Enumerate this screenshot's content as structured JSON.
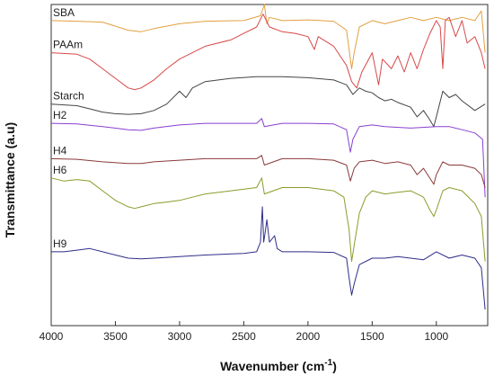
{
  "chart_data": {
    "type": "line",
    "title": "",
    "xlabel": "Wavenumber (cm",
    "xlabel_sup": "-1",
    "xlabel_close": ")",
    "ylabel": "Transmittance (a.u)",
    "xlim": [
      4000,
      600
    ],
    "x_reversed": true,
    "ylim": [
      0,
      100
    ],
    "y_ticks_shown": false,
    "grid": false,
    "legend": "inline labels at left",
    "x_ticks": [
      4000,
      3500,
      3000,
      2500,
      2000,
      1500,
      1000
    ],
    "x_tick_labels": [
      "4000",
      "3500",
      "3000",
      "2500",
      "2000",
      "1500",
      "1000"
    ],
    "series": [
      {
        "name": "SBA",
        "color": "#E2A040",
        "points": [
          [
            4000,
            95
          ],
          [
            3800,
            94.8
          ],
          [
            3600,
            94.5
          ],
          [
            3400,
            92
          ],
          [
            3300,
            91.5
          ],
          [
            3200,
            92.5
          ],
          [
            3000,
            94
          ],
          [
            2800,
            94.8
          ],
          [
            2500,
            95
          ],
          [
            2370,
            96.5
          ],
          [
            2340,
            100
          ],
          [
            2320,
            94
          ],
          [
            2300,
            96
          ],
          [
            2200,
            95
          ],
          [
            2000,
            95.2
          ],
          [
            1800,
            94.8
          ],
          [
            1700,
            92
          ],
          [
            1660,
            80
          ],
          [
            1640,
            85
          ],
          [
            1600,
            93
          ],
          [
            1500,
            95
          ],
          [
            1400,
            94
          ],
          [
            1300,
            95
          ],
          [
            1200,
            96
          ],
          [
            1100,
            95
          ],
          [
            1000,
            96
          ],
          [
            900,
            95
          ],
          [
            800,
            96
          ],
          [
            700,
            95
          ],
          [
            650,
            98
          ],
          [
            620,
            85
          ]
        ]
      },
      {
        "name": "PAAm",
        "color": "#D84848",
        "points": [
          [
            4000,
            85
          ],
          [
            3800,
            84.5
          ],
          [
            3700,
            83
          ],
          [
            3600,
            80
          ],
          [
            3500,
            77
          ],
          [
            3400,
            74
          ],
          [
            3350,
            73.5
          ],
          [
            3300,
            74
          ],
          [
            3200,
            76.5
          ],
          [
            3100,
            80
          ],
          [
            3000,
            83
          ],
          [
            2900,
            85
          ],
          [
            2800,
            87
          ],
          [
            2600,
            89
          ],
          [
            2500,
            91
          ],
          [
            2400,
            93
          ],
          [
            2350,
            97
          ],
          [
            2300,
            93
          ],
          [
            2200,
            91.5
          ],
          [
            2100,
            91
          ],
          [
            2000,
            90
          ],
          [
            1950,
            86
          ],
          [
            1920,
            90
          ],
          [
            1800,
            87
          ],
          [
            1700,
            81
          ],
          [
            1660,
            76
          ],
          [
            1620,
            74
          ],
          [
            1580,
            79
          ],
          [
            1500,
            85
          ],
          [
            1450,
            75
          ],
          [
            1420,
            83
          ],
          [
            1350,
            80
          ],
          [
            1300,
            84
          ],
          [
            1250,
            79
          ],
          [
            1200,
            85
          ],
          [
            1150,
            80
          ],
          [
            1100,
            86
          ],
          [
            1050,
            91
          ],
          [
            1000,
            95
          ],
          [
            970,
            93
          ],
          [
            950,
            80
          ],
          [
            930,
            95
          ],
          [
            900,
            96
          ],
          [
            850,
            90
          ],
          [
            800,
            95
          ],
          [
            760,
            88
          ],
          [
            700,
            90
          ],
          [
            650,
            85
          ],
          [
            620,
            80
          ]
        ]
      },
      {
        "name": "Starch",
        "color": "#444444",
        "points": [
          [
            4000,
            69
          ],
          [
            3800,
            68.5
          ],
          [
            3700,
            67.5
          ],
          [
            3600,
            66.5
          ],
          [
            3500,
            66
          ],
          [
            3400,
            65.8
          ],
          [
            3300,
            66
          ],
          [
            3200,
            67
          ],
          [
            3100,
            69
          ],
          [
            3000,
            73
          ],
          [
            2950,
            71
          ],
          [
            2900,
            74
          ],
          [
            2800,
            76
          ],
          [
            2600,
            77
          ],
          [
            2400,
            77.5
          ],
          [
            2200,
            77.5
          ],
          [
            2000,
            77.2
          ],
          [
            1800,
            76.5
          ],
          [
            1700,
            75
          ],
          [
            1650,
            72
          ],
          [
            1600,
            74
          ],
          [
            1550,
            73
          ],
          [
            1500,
            72.5
          ],
          [
            1450,
            71
          ],
          [
            1400,
            70
          ],
          [
            1350,
            70.5
          ],
          [
            1300,
            69.5
          ],
          [
            1200,
            68
          ],
          [
            1150,
            65
          ],
          [
            1100,
            67
          ],
          [
            1050,
            64
          ],
          [
            1020,
            62
          ],
          [
            1000,
            65
          ],
          [
            950,
            73
          ],
          [
            900,
            71
          ],
          [
            850,
            72
          ],
          [
            800,
            70
          ],
          [
            700,
            67
          ],
          [
            620,
            69
          ]
        ]
      },
      {
        "name": "H2",
        "color": "#8A3FD0",
        "points": [
          [
            4000,
            63
          ],
          [
            3800,
            62.8
          ],
          [
            3600,
            62
          ],
          [
            3400,
            61
          ],
          [
            3300,
            60.8
          ],
          [
            3200,
            61.5
          ],
          [
            3000,
            62.5
          ],
          [
            2800,
            63
          ],
          [
            2400,
            63
          ],
          [
            2360,
            64.5
          ],
          [
            2340,
            62
          ],
          [
            2200,
            63
          ],
          [
            2000,
            63
          ],
          [
            1800,
            62.8
          ],
          [
            1700,
            61
          ],
          [
            1670,
            54
          ],
          [
            1650,
            58
          ],
          [
            1600,
            62
          ],
          [
            1500,
            62.5
          ],
          [
            1400,
            62
          ],
          [
            1200,
            61.5
          ],
          [
            1000,
            62
          ],
          [
            900,
            62
          ],
          [
            800,
            61
          ],
          [
            700,
            60
          ],
          [
            640,
            58
          ],
          [
            620,
            40
          ]
        ]
      },
      {
        "name": "H4",
        "color": "#8B3A3A",
        "points": [
          [
            4000,
            52
          ],
          [
            3800,
            51.8
          ],
          [
            3600,
            51
          ],
          [
            3400,
            50.5
          ],
          [
            3300,
            50.5
          ],
          [
            3200,
            51
          ],
          [
            3000,
            51.5
          ],
          [
            2800,
            52
          ],
          [
            2400,
            52
          ],
          [
            2360,
            53
          ],
          [
            2340,
            50
          ],
          [
            2200,
            52
          ],
          [
            2000,
            52
          ],
          [
            1800,
            51.5
          ],
          [
            1700,
            50
          ],
          [
            1670,
            45
          ],
          [
            1640,
            49
          ],
          [
            1600,
            51
          ],
          [
            1500,
            51.5
          ],
          [
            1400,
            50.5
          ],
          [
            1300,
            51
          ],
          [
            1200,
            50
          ],
          [
            1150,
            47
          ],
          [
            1100,
            49
          ],
          [
            1020,
            44
          ],
          [
            1000,
            47
          ],
          [
            950,
            51
          ],
          [
            900,
            50
          ],
          [
            800,
            50
          ],
          [
            700,
            49
          ],
          [
            650,
            47
          ],
          [
            620,
            43
          ]
        ]
      },
      {
        "name": "H6",
        "color": "#8D9A2A",
        "points": [
          [
            4000,
            46
          ],
          [
            3900,
            45
          ],
          [
            3800,
            45.5
          ],
          [
            3700,
            45
          ],
          [
            3600,
            42
          ],
          [
            3500,
            39
          ],
          [
            3400,
            37
          ],
          [
            3350,
            36.5
          ],
          [
            3300,
            37
          ],
          [
            3200,
            38
          ],
          [
            3100,
            38.5
          ],
          [
            3000,
            39
          ],
          [
            2900,
            40
          ],
          [
            2800,
            41
          ],
          [
            2600,
            42
          ],
          [
            2400,
            43
          ],
          [
            2360,
            46
          ],
          [
            2340,
            41
          ],
          [
            2200,
            43
          ],
          [
            2000,
            43
          ],
          [
            1800,
            42
          ],
          [
            1720,
            40
          ],
          [
            1680,
            30
          ],
          [
            1660,
            20
          ],
          [
            1640,
            25
          ],
          [
            1600,
            35
          ],
          [
            1550,
            40
          ],
          [
            1500,
            42
          ],
          [
            1400,
            41
          ],
          [
            1300,
            41.5
          ],
          [
            1200,
            42
          ],
          [
            1100,
            40
          ],
          [
            1050,
            36
          ],
          [
            1020,
            34
          ],
          [
            1000,
            36
          ],
          [
            950,
            42
          ],
          [
            900,
            43
          ],
          [
            800,
            42
          ],
          [
            700,
            38
          ],
          [
            650,
            34
          ],
          [
            620,
            20
          ]
        ]
      },
      {
        "name": "H9",
        "color": "#2E2E8A",
        "points": [
          [
            4000,
            23
          ],
          [
            3900,
            23
          ],
          [
            3800,
            23.5
          ],
          [
            3700,
            24
          ],
          [
            3600,
            23
          ],
          [
            3500,
            22
          ],
          [
            3400,
            21
          ],
          [
            3300,
            20.8
          ],
          [
            3200,
            21
          ],
          [
            3000,
            21.5
          ],
          [
            2800,
            22
          ],
          [
            2500,
            22.5
          ],
          [
            2400,
            23
          ],
          [
            2370,
            26
          ],
          [
            2355,
            37
          ],
          [
            2345,
            26
          ],
          [
            2330,
            30
          ],
          [
            2320,
            33
          ],
          [
            2300,
            26
          ],
          [
            2260,
            28
          ],
          [
            2240,
            24
          ],
          [
            2200,
            23
          ],
          [
            2000,
            23
          ],
          [
            1800,
            22.8
          ],
          [
            1700,
            21
          ],
          [
            1680,
            15
          ],
          [
            1660,
            9.5
          ],
          [
            1640,
            13
          ],
          [
            1600,
            19
          ],
          [
            1500,
            21
          ],
          [
            1400,
            21
          ],
          [
            1300,
            21.5
          ],
          [
            1200,
            21
          ],
          [
            1100,
            20.5
          ],
          [
            1000,
            23
          ],
          [
            900,
            21
          ],
          [
            800,
            22
          ],
          [
            700,
            21
          ],
          [
            650,
            18
          ],
          [
            620,
            5
          ]
        ]
      }
    ]
  }
}
